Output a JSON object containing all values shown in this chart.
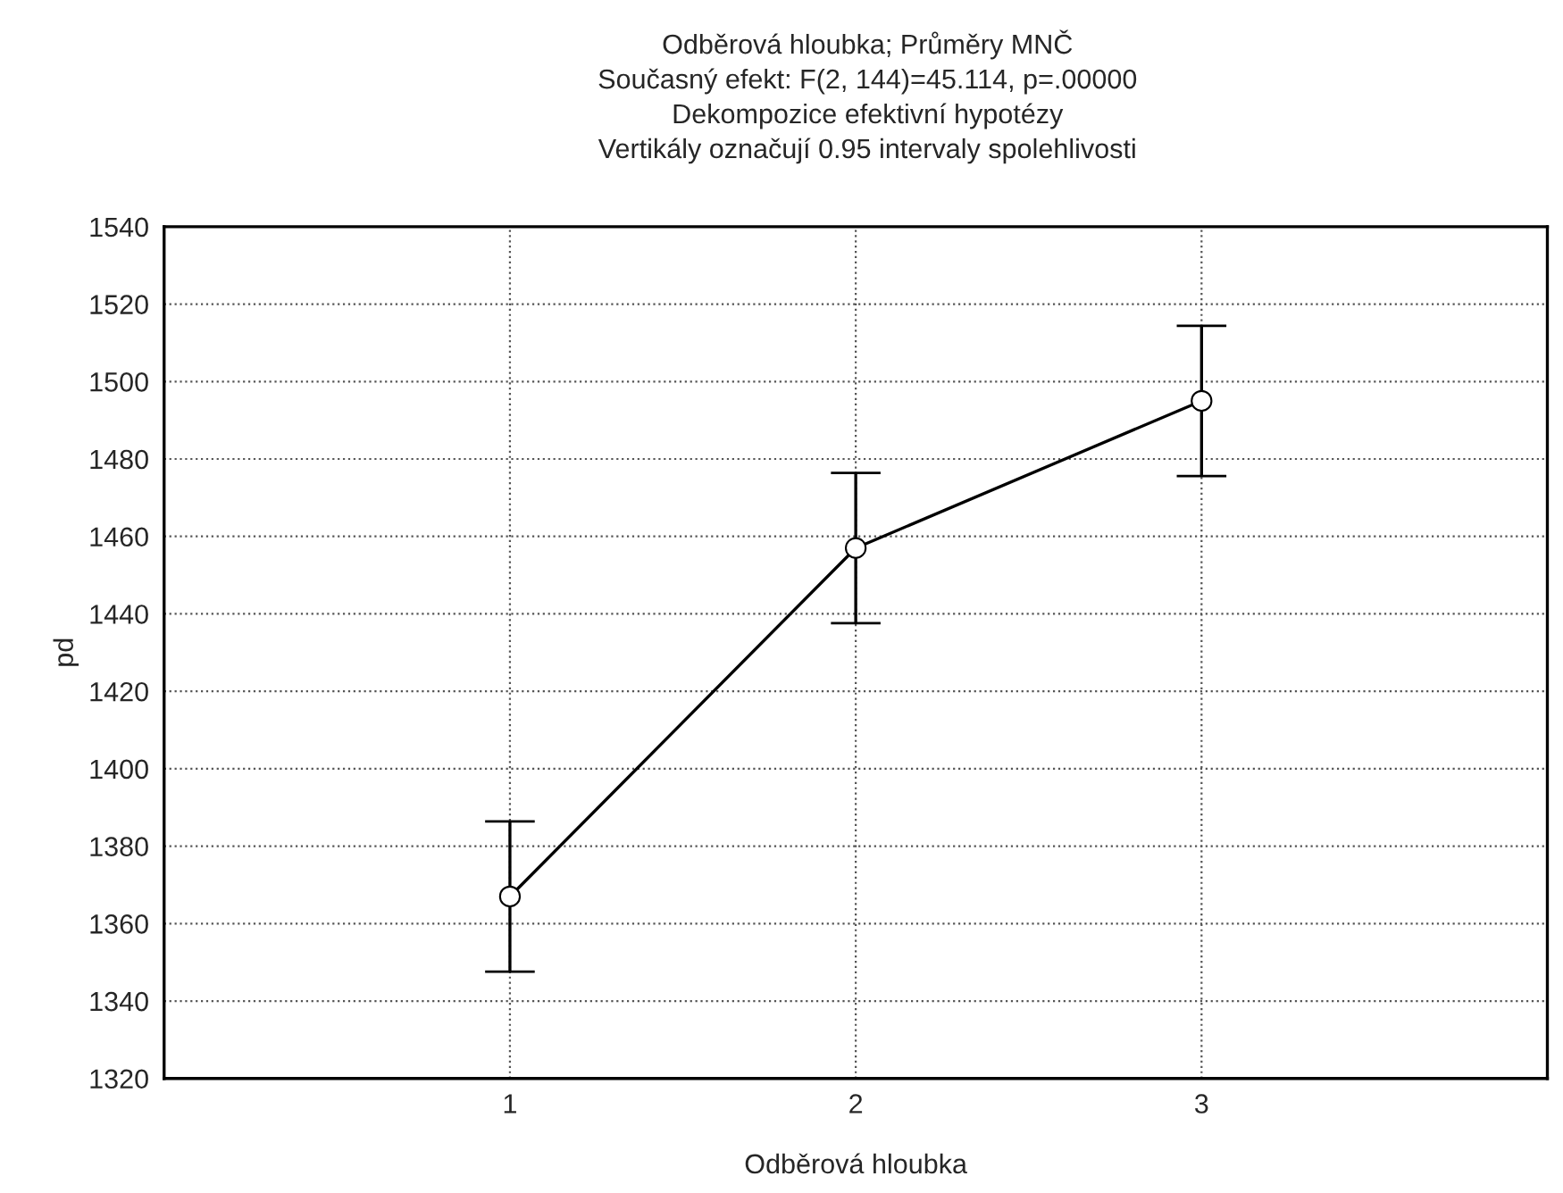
{
  "chart_data": {
    "type": "line",
    "title": "Odběrová hloubka; Průměry MNČ",
    "subtitle": "Současný efekt: F(2, 144)=45.114, p=.00000\nDekompozice efektivní hypotézy\nVertikály označují 0.95 intervaly spolehlivosti",
    "xlabel": "Odběrová hloubka",
    "ylabel": "pd",
    "x": [
      1,
      2,
      3
    ],
    "series": [
      {
        "color": "#000000",
        "values": [
          1367,
          1457,
          1495
        ],
        "errors": [
          19.4,
          19.4,
          19.4
        ]
      }
    ],
    "xlim": [
      0,
      4
    ],
    "xticks": [
      1,
      2,
      3
    ],
    "ylim": [
      1320,
      1540
    ],
    "yticks": [
      1320,
      1340,
      1360,
      1380,
      1400,
      1420,
      1440,
      1460,
      1480,
      1500,
      1520,
      1540
    ],
    "grid": true,
    "marker": "circle",
    "line_style": "solid"
  }
}
